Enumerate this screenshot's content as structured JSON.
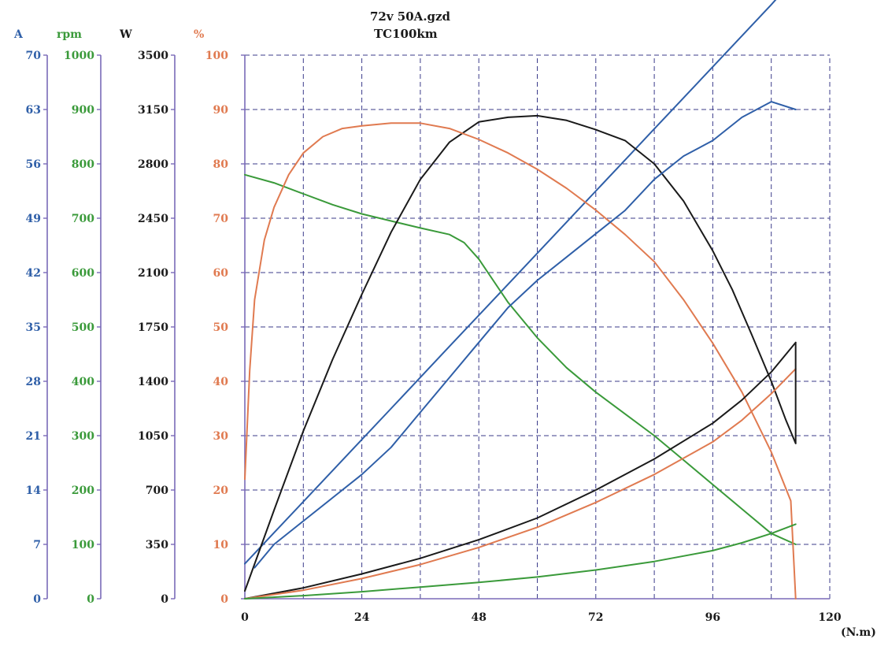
{
  "title": {
    "line1": "72v 50A.gzd",
    "line2": "TC100km"
  },
  "x_unit": "(N.m)",
  "colors": {
    "current": "#2f5fa8",
    "speed": "#3a9a3a",
    "power": "#1a1a1a",
    "efficiency": "#e07a50",
    "grid": "#3b3b8a",
    "axis_purple": "#7a6ab8"
  },
  "chart_data": {
    "type": "line",
    "title": "72v 50A.gzd TC100km",
    "xlabel": "(N.m)",
    "x_ticks": [
      "0",
      "24",
      "48",
      "72",
      "96",
      "120"
    ],
    "xlim": [
      0,
      120
    ],
    "y_axes": [
      {
        "key": "current",
        "label": "A",
        "ticks": [
          "0",
          "7",
          "14",
          "21",
          "28",
          "35",
          "42",
          "49",
          "56",
          "63",
          "70"
        ],
        "range": [
          0,
          70
        ]
      },
      {
        "key": "speed",
        "label": "rpm",
        "ticks": [
          "0",
          "100",
          "200",
          "300",
          "400",
          "500",
          "600",
          "700",
          "800",
          "900",
          "1000"
        ],
        "range": [
          0,
          1000
        ]
      },
      {
        "key": "power",
        "label": "W",
        "ticks": [
          "0",
          "350",
          "700",
          "1050",
          "1400",
          "1750",
          "2100",
          "2450",
          "2800",
          "3150",
          "3500"
        ],
        "range": [
          0,
          3500
        ]
      },
      {
        "key": "efficiency",
        "label": "%",
        "ticks": [
          "0",
          "10",
          "20",
          "30",
          "40",
          "50",
          "60",
          "70",
          "80",
          "90",
          "100"
        ],
        "range": [
          0,
          100
        ]
      }
    ],
    "grid": true,
    "series": [
      {
        "key": "current",
        "axis": "current",
        "x": [
          0,
          6,
          12,
          18,
          24,
          30,
          36,
          42,
          48,
          54,
          60,
          66,
          72,
          78,
          84,
          90,
          96,
          102,
          108,
          113
        ],
        "y": [
          4.5,
          8.5,
          12.5,
          16.5,
          20.5,
          24.5,
          28.5,
          32.5,
          36.5,
          40.5,
          44.5,
          48.5,
          52.5,
          56.5,
          60.5,
          64.5,
          68.5,
          72.5,
          76.5,
          80
        ]
      },
      {
        "key": "speed",
        "axis": "speed",
        "x": [
          0,
          6,
          12,
          18,
          24,
          30,
          36,
          42,
          45,
          48,
          54,
          60,
          66,
          72,
          78,
          84,
          90,
          96,
          102,
          108,
          113
        ],
        "y": [
          780,
          765,
          745,
          725,
          708,
          695,
          682,
          670,
          655,
          625,
          545,
          480,
          425,
          380,
          340,
          300,
          255,
          210,
          165,
          120,
          100
        ]
      },
      {
        "key": "power",
        "axis": "power",
        "x": [
          0,
          6,
          12,
          18,
          24,
          30,
          36,
          42,
          48,
          54,
          60,
          66,
          72,
          78,
          84,
          90,
          96,
          100,
          104,
          108,
          111,
          113
        ],
        "y": [
          50,
          570,
          1080,
          1540,
          1960,
          2360,
          2700,
          2940,
          3070,
          3100,
          3110,
          3080,
          3020,
          2950,
          2800,
          2560,
          2240,
          1990,
          1700,
          1400,
          1150,
          1000
        ]
      },
      {
        "key": "efficiency",
        "axis": "efficiency",
        "x": [
          0,
          1,
          2,
          4,
          6,
          9,
          12,
          16,
          20,
          24,
          30,
          36,
          42,
          48,
          54,
          60,
          66,
          72,
          78,
          84,
          90,
          96,
          102,
          108,
          112,
          113
        ],
        "y": [
          22,
          42,
          55,
          66,
          72,
          78,
          82,
          85,
          86.5,
          87,
          87.5,
          87.5,
          86.5,
          84.5,
          82,
          79,
          75.5,
          71.5,
          67,
          62,
          55,
          47,
          38,
          27,
          18,
          0
        ]
      },
      {
        "key": "current_curve",
        "axis": "current",
        "x": [
          2,
          6,
          12,
          18,
          24,
          30,
          36,
          42,
          48,
          54,
          60,
          66,
          72,
          78,
          84,
          90,
          96,
          102,
          108,
          113
        ],
        "y": [
          4,
          7,
          10,
          13,
          16,
          19.5,
          24,
          28.5,
          33,
          37.5,
          41,
          44,
          47,
          50,
          54,
          57,
          59,
          62,
          64,
          63
        ]
      },
      {
        "key": "speed_load_curve",
        "axis": "power",
        "x": [
          0,
          12,
          24,
          36,
          48,
          60,
          72,
          84,
          96,
          102,
          108,
          113
        ],
        "y": [
          0,
          70,
          160,
          260,
          380,
          520,
          700,
          900,
          1130,
          1280,
          1460,
          1650
        ]
      },
      {
        "key": "efficiency_load_curve",
        "axis": "power",
        "x": [
          0,
          12,
          24,
          36,
          48,
          60,
          72,
          84,
          96,
          102,
          108,
          113
        ],
        "y": [
          0,
          55,
          130,
          220,
          330,
          460,
          620,
          800,
          1010,
          1150,
          1320,
          1480
        ]
      },
      {
        "key": "speed_low_curve",
        "axis": "power",
        "x": [
          0,
          12,
          24,
          36,
          48,
          60,
          72,
          84,
          96,
          102,
          108,
          113
        ],
        "y": [
          0,
          20,
          45,
          75,
          105,
          140,
          185,
          240,
          310,
          360,
          420,
          480
        ]
      }
    ]
  }
}
